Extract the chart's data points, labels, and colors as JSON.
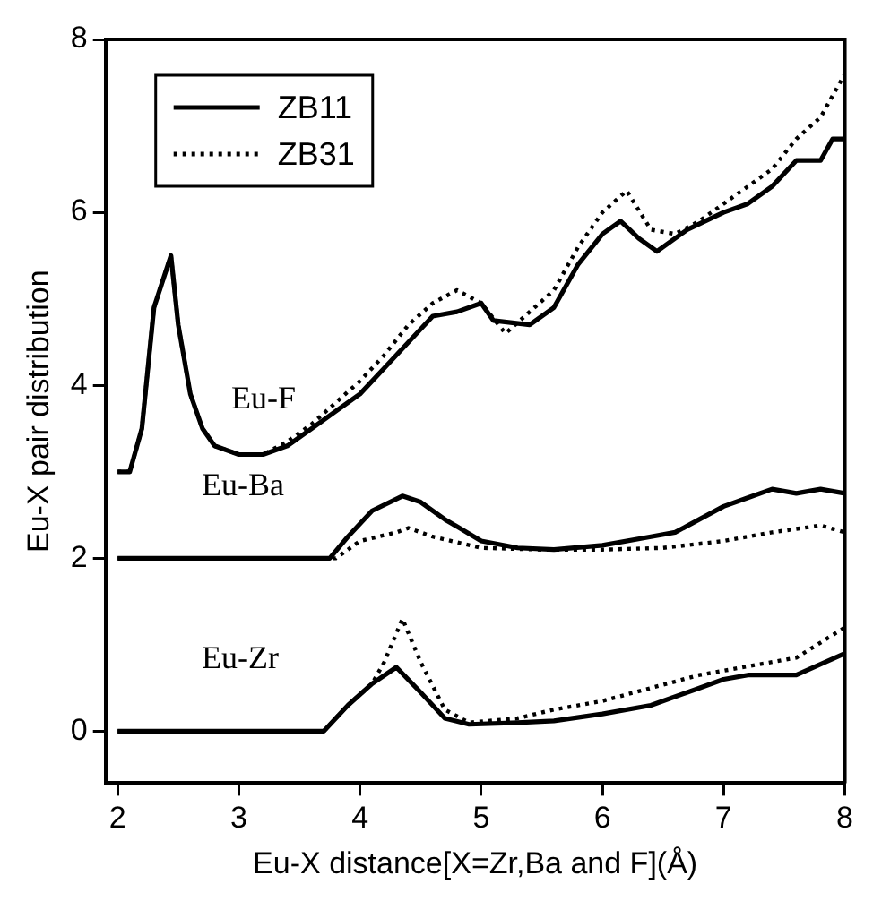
{
  "chart_data": {
    "type": "line",
    "xlabel": "Eu-X distance[X=Zr,Ba and F](Å)",
    "ylabel": "Eu-X pair distribution",
    "xlim": [
      1.9,
      8
    ],
    "ylim": [
      -0.6,
      8
    ],
    "xticks": [
      2,
      3,
      4,
      5,
      6,
      7,
      8
    ],
    "yticks": [
      0,
      2,
      4,
      6,
      8
    ],
    "legend": "top left",
    "grid": false,
    "marker": "none",
    "series": [
      {
        "name": "ZB11",
        "color": "#000000",
        "line_style": "solid",
        "x": [
          2.0,
          2.1,
          2.2,
          2.3,
          2.44,
          2.5,
          2.6,
          2.7,
          2.8,
          3.0,
          3.2,
          3.4,
          3.6,
          3.8,
          4.0,
          4.2,
          4.4,
          4.6,
          4.8,
          5.0,
          5.1,
          5.4,
          5.6,
          5.8,
          6.0,
          6.15,
          6.3,
          6.45,
          6.7,
          7.0,
          7.2,
          7.4,
          7.6,
          7.8,
          7.9,
          8.0
        ],
        "values": [
          3.0,
          3.0,
          3.5,
          4.9,
          5.5,
          4.7,
          3.9,
          3.5,
          3.3,
          3.2,
          3.2,
          3.3,
          3.5,
          3.7,
          3.9,
          4.2,
          4.5,
          4.8,
          4.85,
          4.95,
          4.75,
          4.7,
          4.9,
          5.4,
          5.75,
          5.9,
          5.7,
          5.55,
          5.8,
          6.0,
          6.1,
          6.3,
          6.6,
          6.6,
          6.85,
          6.85
        ]
      },
      {
        "name": "ZB31",
        "color": "#000000",
        "line_style": "dotted",
        "x": [
          2.0,
          2.1,
          2.2,
          2.3,
          2.44,
          2.5,
          2.6,
          2.7,
          2.8,
          3.0,
          3.2,
          3.4,
          3.6,
          3.8,
          4.0,
          4.2,
          4.4,
          4.6,
          4.8,
          5.0,
          5.2,
          5.4,
          5.6,
          5.8,
          6.0,
          6.2,
          6.4,
          6.6,
          6.8,
          7.0,
          7.2,
          7.4,
          7.6,
          7.8,
          8.0
        ],
        "values": [
          3.0,
          3.0,
          3.5,
          4.9,
          5.5,
          4.7,
          3.9,
          3.5,
          3.3,
          3.2,
          3.2,
          3.35,
          3.55,
          3.8,
          4.05,
          4.35,
          4.7,
          4.95,
          5.1,
          4.95,
          4.6,
          4.85,
          5.1,
          5.6,
          6.0,
          6.25,
          5.8,
          5.75,
          5.9,
          6.1,
          6.3,
          6.5,
          6.85,
          7.1,
          7.6
        ]
      },
      {
        "color": "#000000",
        "line_style": "solid",
        "x": [
          2.0,
          3.75,
          3.9,
          4.1,
          4.35,
          4.5,
          4.7,
          5.0,
          5.3,
          5.6,
          6.0,
          6.4,
          6.6,
          6.8,
          7.0,
          7.2,
          7.4,
          7.6,
          7.8,
          8.0
        ],
        "values": [
          2.0,
          2.0,
          2.25,
          2.55,
          2.72,
          2.65,
          2.45,
          2.2,
          2.12,
          2.1,
          2.15,
          2.25,
          2.3,
          2.45,
          2.6,
          2.7,
          2.8,
          2.75,
          2.8,
          2.75
        ]
      },
      {
        "color": "#000000",
        "line_style": "dotted",
        "x": [
          2.0,
          3.8,
          4.0,
          4.3,
          4.4,
          4.6,
          5.0,
          5.5,
          6.0,
          6.5,
          7.0,
          7.4,
          7.8,
          8.0
        ],
        "values": [
          2.0,
          2.0,
          2.2,
          2.3,
          2.35,
          2.25,
          2.12,
          2.1,
          2.1,
          2.12,
          2.2,
          2.3,
          2.38,
          2.3
        ]
      },
      {
        "color": "#000000",
        "line_style": "solid",
        "x": [
          2.0,
          3.7,
          3.9,
          4.1,
          4.3,
          4.5,
          4.7,
          4.9,
          5.3,
          5.6,
          6.0,
          6.4,
          6.8,
          7.0,
          7.2,
          7.6,
          8.0
        ],
        "values": [
          0,
          0,
          0.3,
          0.55,
          0.74,
          0.45,
          0.15,
          0.08,
          0.1,
          0.12,
          0.2,
          0.3,
          0.5,
          0.6,
          0.65,
          0.65,
          0.9
        ]
      },
      {
        "color": "#000000",
        "line_style": "dotted",
        "x": [
          2.0,
          3.7,
          3.9,
          4.1,
          4.2,
          4.35,
          4.5,
          4.7,
          4.9,
          5.3,
          5.6,
          6.0,
          6.4,
          6.8,
          7.2,
          7.6,
          8.0
        ],
        "values": [
          0,
          0,
          0.3,
          0.55,
          0.8,
          1.3,
          0.8,
          0.25,
          0.1,
          0.15,
          0.25,
          0.35,
          0.5,
          0.65,
          0.75,
          0.85,
          1.2
        ]
      }
    ],
    "annotations": [
      "Eu-F",
      "Eu-Ba",
      "Eu-Zr"
    ]
  }
}
